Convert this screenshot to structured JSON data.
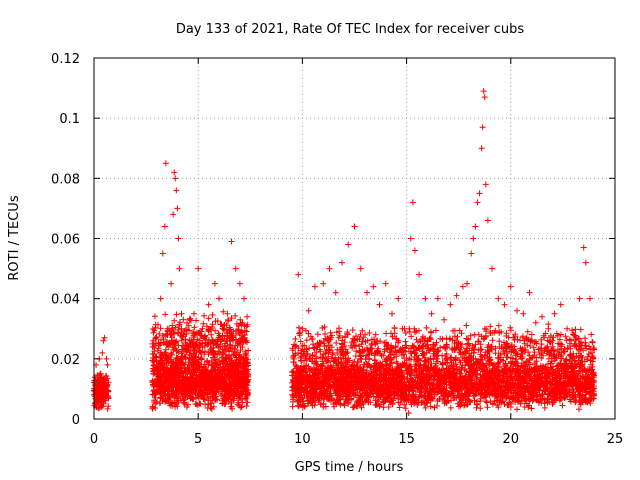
{
  "chart_data": {
    "type": "scatter",
    "title": "Day 133 of 2021, Rate Of TEC Index for receiver cubs",
    "xlabel": "GPS time / hours",
    "ylabel": "ROTI / TECUs",
    "xlim": [
      0,
      25
    ],
    "ylim": [
      0,
      0.12
    ],
    "x_ticks": [
      0,
      5,
      10,
      15,
      20,
      25
    ],
    "x_tick_labels": [
      "0",
      "5",
      "10",
      "15",
      "20",
      "25"
    ],
    "y_ticks": [
      0,
      0.02,
      0.04,
      0.06,
      0.08,
      0.1,
      0.12
    ],
    "y_tick_labels": [
      "0",
      "0.02",
      "0.04",
      "0.06",
      "0.08",
      "0.1",
      "0.12"
    ],
    "grid": true,
    "marker": "plus",
    "color": "#ff0000",
    "series": [
      {
        "points": [
          [
            0.0,
            0.008
          ],
          [
            0.05,
            0.012
          ],
          [
            0.1,
            0.018
          ],
          [
            0.15,
            0.006
          ],
          [
            0.2,
            0.01
          ],
          [
            0.25,
            0.02
          ],
          [
            0.3,
            0.015
          ],
          [
            0.35,
            0.004
          ],
          [
            0.4,
            0.022
          ],
          [
            0.45,
            0.026
          ],
          [
            0.5,
            0.027
          ],
          [
            0.55,
            0.012
          ],
          [
            0.6,
            0.02
          ],
          [
            0.65,
            0.018
          ],
          [
            0.1,
            0.004
          ],
          [
            0.3,
            0.009
          ],
          [
            2.9,
            0.008
          ],
          [
            3.0,
            0.015
          ],
          [
            3.1,
            0.025
          ],
          [
            3.2,
            0.04
          ],
          [
            3.3,
            0.055
          ],
          [
            3.4,
            0.064
          ],
          [
            3.45,
            0.085
          ],
          [
            3.5,
            0.02
          ],
          [
            3.6,
            0.03
          ],
          [
            3.7,
            0.045
          ],
          [
            3.8,
            0.068
          ],
          [
            3.85,
            0.082
          ],
          [
            3.9,
            0.08
          ],
          [
            3.95,
            0.076
          ],
          [
            4.0,
            0.07
          ],
          [
            4.05,
            0.06
          ],
          [
            4.1,
            0.05
          ],
          [
            4.2,
            0.035
          ],
          [
            4.3,
            0.028
          ],
          [
            4.4,
            0.02
          ],
          [
            4.6,
            0.025
          ],
          [
            4.8,
            0.035
          ],
          [
            5.0,
            0.05
          ],
          [
            5.2,
            0.03
          ],
          [
            5.5,
            0.038
          ],
          [
            5.8,
            0.045
          ],
          [
            6.0,
            0.04
          ],
          [
            6.2,
            0.03
          ],
          [
            6.4,
            0.035
          ],
          [
            6.6,
            0.059
          ],
          [
            6.8,
            0.05
          ],
          [
            7.0,
            0.045
          ],
          [
            7.2,
            0.04
          ],
          [
            7.3,
            0.02
          ],
          [
            3.3,
            0.01
          ],
          [
            4.5,
            0.012
          ],
          [
            5.5,
            0.015
          ],
          [
            6.5,
            0.012
          ],
          [
            9.6,
            0.02
          ],
          [
            9.8,
            0.048
          ],
          [
            10.0,
            0.03
          ],
          [
            10.3,
            0.036
          ],
          [
            10.6,
            0.044
          ],
          [
            11.0,
            0.045
          ],
          [
            11.3,
            0.05
          ],
          [
            11.6,
            0.042
          ],
          [
            11.9,
            0.052
          ],
          [
            12.2,
            0.058
          ],
          [
            12.5,
            0.064
          ],
          [
            12.8,
            0.05
          ],
          [
            13.1,
            0.042
          ],
          [
            13.4,
            0.044
          ],
          [
            13.7,
            0.038
          ],
          [
            14.0,
            0.045
          ],
          [
            14.3,
            0.035
          ],
          [
            14.6,
            0.04
          ],
          [
            14.9,
            0.03
          ],
          [
            15.1,
            0.01
          ],
          [
            15.2,
            0.06
          ],
          [
            15.3,
            0.072
          ],
          [
            15.4,
            0.056
          ],
          [
            15.6,
            0.048
          ],
          [
            15.9,
            0.04
          ],
          [
            16.2,
            0.035
          ],
          [
            16.5,
            0.04
          ],
          [
            16.8,
            0.033
          ],
          [
            17.1,
            0.038
          ],
          [
            17.4,
            0.041
          ],
          [
            17.7,
            0.044
          ],
          [
            17.9,
            0.045
          ],
          [
            18.1,
            0.055
          ],
          [
            18.2,
            0.06
          ],
          [
            18.3,
            0.064
          ],
          [
            18.4,
            0.072
          ],
          [
            18.5,
            0.075
          ],
          [
            18.6,
            0.09
          ],
          [
            18.65,
            0.097
          ],
          [
            18.7,
            0.109
          ],
          [
            18.75,
            0.107
          ],
          [
            18.8,
            0.078
          ],
          [
            18.9,
            0.066
          ],
          [
            19.1,
            0.05
          ],
          [
            19.4,
            0.04
          ],
          [
            19.7,
            0.038
          ],
          [
            20.0,
            0.044
          ],
          [
            20.3,
            0.036
          ],
          [
            20.6,
            0.035
          ],
          [
            20.9,
            0.042
          ],
          [
            21.2,
            0.032
          ],
          [
            21.5,
            0.034
          ],
          [
            21.8,
            0.03
          ],
          [
            22.1,
            0.035
          ],
          [
            22.4,
            0.038
          ],
          [
            22.7,
            0.03
          ],
          [
            23.0,
            0.028
          ],
          [
            23.3,
            0.04
          ],
          [
            23.5,
            0.057
          ],
          [
            23.6,
            0.052
          ],
          [
            23.8,
            0.04
          ],
          [
            23.95,
            0.02
          ],
          [
            11.0,
            0.004
          ],
          [
            13.0,
            0.006
          ],
          [
            15.1,
            0.002
          ],
          [
            17.0,
            0.006
          ],
          [
            20.0,
            0.004
          ],
          [
            22.0,
            0.005
          ],
          [
            24.0,
            0.008
          ]
        ],
        "clusters": [
          {
            "x_range": [
              0.0,
              0.7
            ],
            "y_range": [
              0.003,
              0.016
            ],
            "count": 180
          },
          {
            "x_range": [
              2.8,
              7.4
            ],
            "y_range": [
              0.003,
              0.022
            ],
            "count": 1300
          },
          {
            "x_range": [
              2.8,
              7.4
            ],
            "y_range": [
              0.015,
              0.036
            ],
            "count": 450
          },
          {
            "x_range": [
              9.5,
              24.0
            ],
            "y_range": [
              0.003,
              0.02
            ],
            "count": 3000
          },
          {
            "x_range": [
              9.5,
              24.0
            ],
            "y_range": [
              0.012,
              0.032
            ],
            "count": 1000
          }
        ]
      }
    ]
  }
}
